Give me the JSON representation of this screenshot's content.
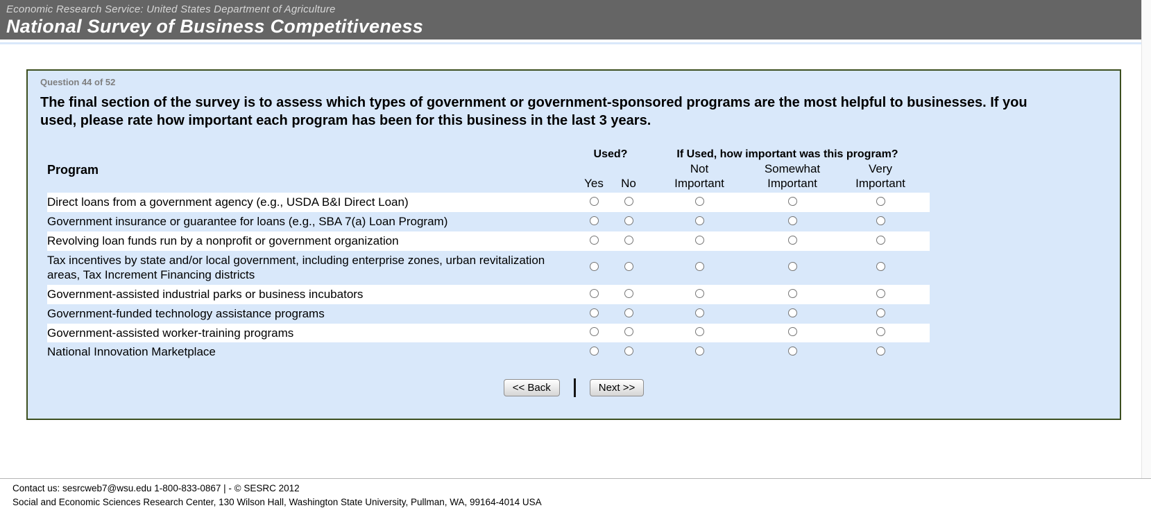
{
  "header": {
    "agency_line": "Economic Research Service: United States Department of Agriculture",
    "survey_title": "National Survey of Business Competitiveness"
  },
  "survey": {
    "progress": "Question 44 of 52",
    "question": "The final section of the survey is to assess which types of government or government-sponsored programs are the most helpful to businesses. If you used, please rate how important each program has been for this business in the last 3 years.",
    "table": {
      "program_header": "Program",
      "used_group_header": "Used?",
      "importance_group_header": "If Used, how important was this program?",
      "columns": {
        "yes": "Yes",
        "no": "No",
        "not_important": "Not Important",
        "somewhat_important": "Somewhat Important",
        "very_important": "Very Important"
      },
      "rows": [
        "Direct loans from a government agency (e.g., USDA B&I Direct Loan)",
        "Government insurance or guarantee for loans (e.g., SBA 7(a) Loan Program)",
        "Revolving loan funds run by a nonprofit or government organization",
        "Tax incentives by state and/or local government, including enterprise zones, urban revitalization areas, Tax Increment Financing districts",
        "Government-assisted industrial parks or business incubators",
        "Government-funded technology assistance programs",
        "Government-assisted worker-training programs",
        "National Innovation Marketplace"
      ]
    },
    "buttons": {
      "back": "<< Back",
      "next": "Next >>"
    }
  },
  "footer": {
    "line1": "Contact us: sesrcweb7@wsu.edu 1-800-833-0867 | - © SESRC 2012",
    "line2": "Social and Economic Sciences Research Center, 130 Wilson Hall, Washington State University, Pullman, WA, 99164-4014 USA"
  },
  "colors": {
    "banner_bg": "#656565",
    "panel_bg": "#d9e8fa",
    "panel_border": "#3c4e1f",
    "row_stripe": "#ffffff"
  }
}
